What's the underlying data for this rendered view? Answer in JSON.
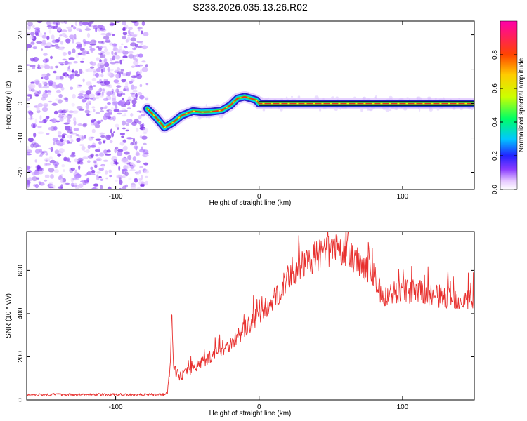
{
  "chart_data": [
    {
      "type": "heatmap",
      "title": "S233.2026.035.13.26.R02",
      "xlabel": "Height of straight line (km)",
      "ylabel": "Frequency (Hz)",
      "xlim": [
        -162,
        150
      ],
      "ylim": [
        -25,
        24
      ],
      "x_ticks": [
        -100,
        0,
        100
      ],
      "y_ticks": [
        -20,
        -10,
        0,
        10,
        20
      ],
      "colorbar": {
        "label": "Normalized spectral amplitude",
        "range": [
          0,
          1
        ],
        "ticks": [
          0.0,
          0.2,
          0.4,
          0.6,
          0.8
        ]
      },
      "noise_region_km": [
        -162,
        -78
      ],
      "signal_trace": [
        {
          "x": -78,
          "y": -1.5
        },
        {
          "x": -72,
          "y": -4
        },
        {
          "x": -66,
          "y": -7
        },
        {
          "x": -60,
          "y": -5.5
        },
        {
          "x": -54,
          "y": -3.5
        },
        {
          "x": -46,
          "y": -2.2
        },
        {
          "x": -40,
          "y": -2.5
        },
        {
          "x": -34,
          "y": -2.4
        },
        {
          "x": -26,
          "y": -2
        },
        {
          "x": -20,
          "y": -0.5
        },
        {
          "x": -15,
          "y": 1.5
        },
        {
          "x": -10,
          "y": 2
        },
        {
          "x": -6,
          "y": 1.5
        },
        {
          "x": -2,
          "y": 1
        },
        {
          "x": 0,
          "y": 0
        },
        {
          "x": 20,
          "y": 0
        },
        {
          "x": 60,
          "y": 0
        },
        {
          "x": 100,
          "y": 0
        },
        {
          "x": 150,
          "y": 0
        }
      ]
    },
    {
      "type": "line",
      "title": "",
      "xlabel": "Height of straight line (km)",
      "ylabel": "SNR (10 * v/v)",
      "xlim": [
        -162,
        150
      ],
      "ylim": [
        0,
        780
      ],
      "x_ticks": [
        -100,
        0,
        100
      ],
      "y_ticks": [
        0,
        200,
        400,
        600
      ],
      "series": [
        {
          "name": "SNR",
          "color": "#e8302e",
          "envelope": [
            {
              "x": -162,
              "y": 25
            },
            {
              "x": -66,
              "y": 25
            },
            {
              "x": -64,
              "y": 45
            },
            {
              "x": -62,
              "y": 150
            },
            {
              "x": -61,
              "y": 410
            },
            {
              "x": -59.5,
              "y": 140
            },
            {
              "x": -55,
              "y": 110
            },
            {
              "x": -40,
              "y": 175
            },
            {
              "x": -20,
              "y": 260
            },
            {
              "x": -5,
              "y": 360
            },
            {
              "x": 10,
              "y": 460
            },
            {
              "x": 20,
              "y": 560
            },
            {
              "x": 35,
              "y": 650
            },
            {
              "x": 50,
              "y": 695
            },
            {
              "x": 60,
              "y": 685
            },
            {
              "x": 75,
              "y": 620
            },
            {
              "x": 82,
              "y": 550
            },
            {
              "x": 86,
              "y": 460
            },
            {
              "x": 92,
              "y": 495
            },
            {
              "x": 100,
              "y": 510
            },
            {
              "x": 115,
              "y": 490
            },
            {
              "x": 135,
              "y": 470
            },
            {
              "x": 150,
              "y": 465
            }
          ]
        }
      ]
    }
  ]
}
